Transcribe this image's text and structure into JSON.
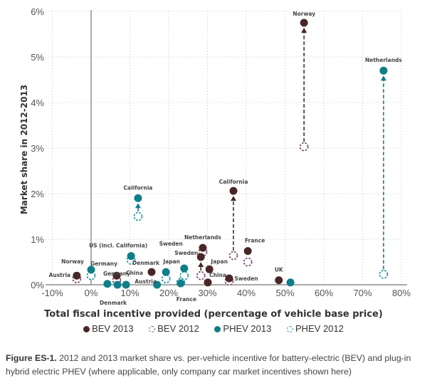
{
  "chart_data": {
    "type": "scatter",
    "xlabel": "Total fiscal incentive provided (percentage of vehicle base price)",
    "ylabel": "Market share in 2012-2013",
    "xlim": [
      -10,
      80
    ],
    "ylim": [
      0,
      6
    ],
    "xticks": [
      "-10%",
      "0%",
      "10%",
      "20%",
      "30%",
      "40%",
      "50%",
      "60%",
      "70%",
      "80%"
    ],
    "yticks": [
      "0%",
      "1%",
      "2%",
      "3%",
      "4%",
      "5%",
      "6%"
    ],
    "grid": true,
    "legend_position": "bottom",
    "colors": {
      "BEV 2013": "#4a2727",
      "BEV 2012": "#7b4a70",
      "PHEV 2013": "#0f7e8a",
      "PHEV 2012": "#1f93a3"
    },
    "series": [
      {
        "name": "BEV 2013",
        "points": [
          {
            "x": 54.9,
            "y": 5.75,
            "label": "Norway"
          },
          {
            "x": 36.7,
            "y": 2.06,
            "label": "California"
          },
          {
            "x": 28.8,
            "y": 0.81,
            "label": "Netherlands"
          },
          {
            "x": 28.3,
            "y": 0.61,
            "label": "Sweden"
          },
          {
            "x": 30.5,
            "y": 0.34,
            "label": "Japan"
          },
          {
            "x": 30.1,
            "y": 0.05,
            "label": "China"
          },
          {
            "x": 40.4,
            "y": 0.74,
            "label": "France"
          },
          {
            "x": 35.6,
            "y": 0.14,
            "label": ""
          },
          {
            "x": 48.4,
            "y": 0.1,
            "label": "UK"
          },
          {
            "x": -3.7,
            "y": 0.2,
            "label": "Austria"
          },
          {
            "x": 6.6,
            "y": 0.2,
            "label": "Germany"
          },
          {
            "x": 15.6,
            "y": 0.28,
            "label": "Denmark"
          }
        ]
      },
      {
        "name": "BEV 2012",
        "points": [
          {
            "x": 54.9,
            "y": 3.03
          },
          {
            "x": 36.7,
            "y": 0.64
          },
          {
            "x": 28.8,
            "y": 0.72
          },
          {
            "x": 28.3,
            "y": 0.2
          },
          {
            "x": 40.4,
            "y": 0.5
          },
          {
            "x": 35.6,
            "y": 0.08
          },
          {
            "x": -3.7,
            "y": 0.13
          },
          {
            "x": 6.6,
            "y": 0.1
          }
        ]
      },
      {
        "name": "PHEV 2013",
        "points": [
          {
            "x": 75.4,
            "y": 4.7,
            "label": "Netherlands"
          },
          {
            "x": 12.1,
            "y": 1.9,
            "label": "California"
          },
          {
            "x": 10.3,
            "y": 0.63,
            "label": "US (incl. California)"
          },
          {
            "x": 0,
            "y": 0.33,
            "label": "Norway"
          },
          {
            "x": 4.2,
            "y": 0.02,
            "label": ""
          },
          {
            "x": 6.8,
            "y": 0.0,
            "label": "Denmark"
          },
          {
            "x": 9.0,
            "y": 0.0,
            "label": "China"
          },
          {
            "x": 17.0,
            "y": 0.0,
            "label": "Austria"
          },
          {
            "x": 19.3,
            "y": 0.28,
            "label": "Japan"
          },
          {
            "x": 24.0,
            "y": 0.36,
            "label": "Sweden"
          },
          {
            "x": 23.1,
            "y": 0.03,
            "label": "France"
          },
          {
            "x": 51.4,
            "y": 0.05,
            "label": ""
          }
        ]
      },
      {
        "name": "PHEV 2012",
        "points": [
          {
            "x": 75.4,
            "y": 0.23
          },
          {
            "x": 12.1,
            "y": 1.5
          },
          {
            "x": 10.3,
            "y": 0.54
          },
          {
            "x": 0,
            "y": 0.2
          },
          {
            "x": 19.3,
            "y": 0.13
          },
          {
            "x": 24.0,
            "y": 0.2
          },
          {
            "x": 23.1,
            "y": 0.05
          }
        ]
      }
    ],
    "extra_labels": [
      {
        "text": "Sweden",
        "x": 35.6,
        "y": 0.14
      },
      {
        "text": "Germany",
        "x": 6.6,
        "y": 0.2
      }
    ],
    "arrows": [
      {
        "series": "BEV",
        "x": 54.9,
        "from": 3.03,
        "to": 5.75
      },
      {
        "series": "PHEV",
        "x": 75.4,
        "from": 0.23,
        "to": 4.7
      },
      {
        "series": "BEV",
        "x": 36.7,
        "from": 0.64,
        "to": 2.06
      },
      {
        "series": "PHEV",
        "x": 12.1,
        "from": 1.5,
        "to": 1.9
      },
      {
        "series": "BEV",
        "x": 28.3,
        "from": 0.2,
        "to": 0.61
      }
    ]
  },
  "legend": {
    "items": [
      "BEV 2013",
      "BEV 2012",
      "PHEV 2013",
      "PHEV 2012"
    ]
  },
  "caption": {
    "label": "Figure ES-1.",
    "text": " 2012 and 2013 market share vs. per-vehicle incentive for battery-electric (BEV) and plug-in hybrid electric PHEV (where applicable, only company car market incentives shown here)"
  }
}
